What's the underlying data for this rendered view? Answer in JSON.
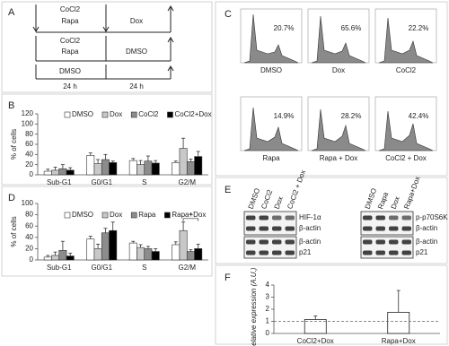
{
  "panel_labels": [
    "A",
    "B",
    "C",
    "D",
    "E",
    "F"
  ],
  "diagram": {
    "rows": [
      {
        "first": [
          "CoCl2",
          "Rapa"
        ],
        "second": "Dox"
      },
      {
        "first": [
          "CoCl2",
          "Rapa"
        ],
        "second": "DMSO"
      },
      {
        "first": [
          "DMSO"
        ],
        "second": ""
      }
    ],
    "durations": [
      "24 h",
      "24 h"
    ]
  },
  "flow": [
    {
      "label": "DMSO",
      "percent": "20.7%"
    },
    {
      "label": "Dox",
      "percent": "65.6%"
    },
    {
      "label": "CoCl2",
      "percent": "22.2%"
    },
    {
      "label": "Rapa",
      "percent": "14.9%"
    },
    {
      "label": "Rapa + Dox",
      "percent": "28.2%"
    },
    {
      "label": "CoCl2 + Dox",
      "percent": "42.4%"
    }
  ],
  "blots": [
    {
      "lanes": [
        "DMSO",
        "CoCl2",
        "Dox",
        "CoCl2 + Dox"
      ],
      "rows": [
        "HIF-1α",
        "β-actin",
        "β-actin",
        "p21"
      ]
    },
    {
      "lanes": [
        "DMSO",
        "Rapa",
        "Dox",
        "Rapa+Dox"
      ],
      "rows": [
        "p-p70S6K",
        "β-actin",
        "β-actin",
        "p21"
      ]
    }
  ],
  "chart_data": [
    {
      "type": "bar",
      "y_label": "% of cells",
      "categories": [
        "Sub-G1",
        "G0/G1",
        "S",
        "G2/M"
      ],
      "series": [
        {
          "name": "DMSO",
          "color": "#ffffff",
          "values": [
            7,
            38,
            28,
            24
          ],
          "errors": [
            4,
            5,
            4,
            3
          ]
        },
        {
          "name": "Dox",
          "color": "#c8c8c8",
          "values": [
            9,
            22,
            20,
            52
          ],
          "errors": [
            6,
            8,
            8,
            20
          ]
        },
        {
          "name": "CoCl2",
          "color": "#8c8c8c",
          "values": [
            12,
            30,
            27,
            26
          ],
          "errors": [
            8,
            10,
            10,
            5
          ]
        },
        {
          "name": "CoCl2+Dox",
          "color": "#000000",
          "values": [
            9,
            24,
            23,
            36
          ],
          "errors": [
            5,
            3,
            5,
            10
          ]
        }
      ],
      "ylim": [
        0,
        120
      ],
      "yticks": [
        0,
        20,
        40,
        60,
        80,
        100,
        120
      ]
    },
    {
      "type": "bar",
      "y_label": "% of cells",
      "categories": [
        "Sub-G1",
        "G0/G1",
        "S",
        "G2/M"
      ],
      "series": [
        {
          "name": "DMSO",
          "color": "#ffffff",
          "values": [
            5,
            37,
            30,
            27
          ],
          "errors": [
            3,
            5,
            3,
            5
          ]
        },
        {
          "name": "Dox",
          "color": "#c8c8c8",
          "values": [
            8,
            20,
            22,
            52
          ],
          "errors": [
            6,
            8,
            5,
            15
          ]
        },
        {
          "name": "Rapa",
          "color": "#8c8c8c",
          "values": [
            17,
            48,
            20,
            15
          ],
          "errors": [
            16,
            8,
            4,
            3
          ]
        },
        {
          "name": "Rapa+Dox",
          "color": "#000000",
          "values": [
            7,
            52,
            15,
            20
          ],
          "errors": [
            5,
            15,
            5,
            8
          ]
        }
      ],
      "annotation": "*",
      "ylim": [
        0,
        100
      ],
      "yticks": [
        0,
        20,
        40,
        60,
        80,
        100
      ]
    },
    {
      "type": "bar",
      "y_label": "Relative expression (A.U.)",
      "categories": [
        "CoCl2+Dox",
        "Rapa+Dox"
      ],
      "values": [
        1.15,
        1.75
      ],
      "errors": [
        0.3,
        1.8
      ],
      "color": "#ffffff",
      "reference_line": 1,
      "ylim": [
        0,
        4
      ],
      "yticks": [
        0,
        1,
        2,
        3,
        4
      ]
    }
  ]
}
